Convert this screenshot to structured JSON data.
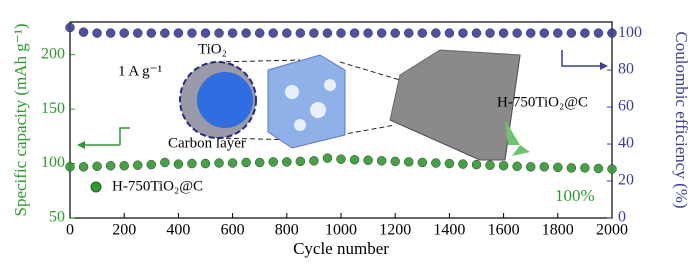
{
  "chart_data": {
    "type": "scatter",
    "x_label": "Cycle number",
    "y_label": "Specific capacity (mAh g⁻¹)",
    "y2_label": "Coulombic efficiency (%)",
    "annotations": [
      "1 A g⁻¹",
      "TiO₂",
      "Carbon layer",
      "H-750TiO₂@C",
      "100%"
    ],
    "x": [
      0,
      50,
      100,
      150,
      200,
      250,
      300,
      350,
      400,
      450,
      500,
      550,
      600,
      650,
      700,
      750,
      800,
      850,
      900,
      950,
      1000,
      1050,
      1100,
      1150,
      1200,
      1250,
      1300,
      1350,
      1400,
      1450,
      1500,
      1550,
      1600,
      1650,
      1700,
      1750,
      1800,
      1850,
      1900,
      1950,
      2000
    ],
    "series": [
      {
        "name": "H-750TiO₂@C",
        "color": "#2e9a2e",
        "axis": "y",
        "values": [
          97,
          97,
          97.5,
          98,
          98,
          98.5,
          99,
          101,
          99.5,
          100,
          100,
          100.5,
          100.5,
          101,
          101,
          101.5,
          101.5,
          102,
          102.5,
          105,
          104,
          103.5,
          103,
          102.5,
          102,
          101.5,
          101,
          100.5,
          100,
          99.5,
          99,
          98.5,
          98,
          97.5,
          97,
          97,
          96.5,
          96,
          96,
          95.5,
          95
        ]
      },
      {
        "color": "#3b3f9a",
        "axis": "y2",
        "values": [
          103,
          100.5,
          100,
          100,
          100,
          100,
          100,
          100,
          100,
          100,
          100,
          100,
          100,
          100,
          100,
          100,
          100,
          100,
          100,
          100,
          100,
          100,
          100,
          100,
          100,
          100,
          100,
          100,
          100,
          100,
          100,
          100,
          100,
          100,
          100,
          100,
          100,
          100,
          100,
          100,
          100
        ]
      }
    ],
    "xlim": [
      0,
      2000
    ],
    "xticks": [
      0,
      200,
      400,
      600,
      800,
      1000,
      1200,
      1400,
      1600,
      1800,
      2000
    ],
    "ylim": [
      50,
      230
    ],
    "yticks": [
      50,
      100,
      150,
      200
    ],
    "y2lim": [
      0,
      106
    ],
    "y2ticks": [
      0,
      20,
      40,
      60,
      80,
      100
    ]
  }
}
